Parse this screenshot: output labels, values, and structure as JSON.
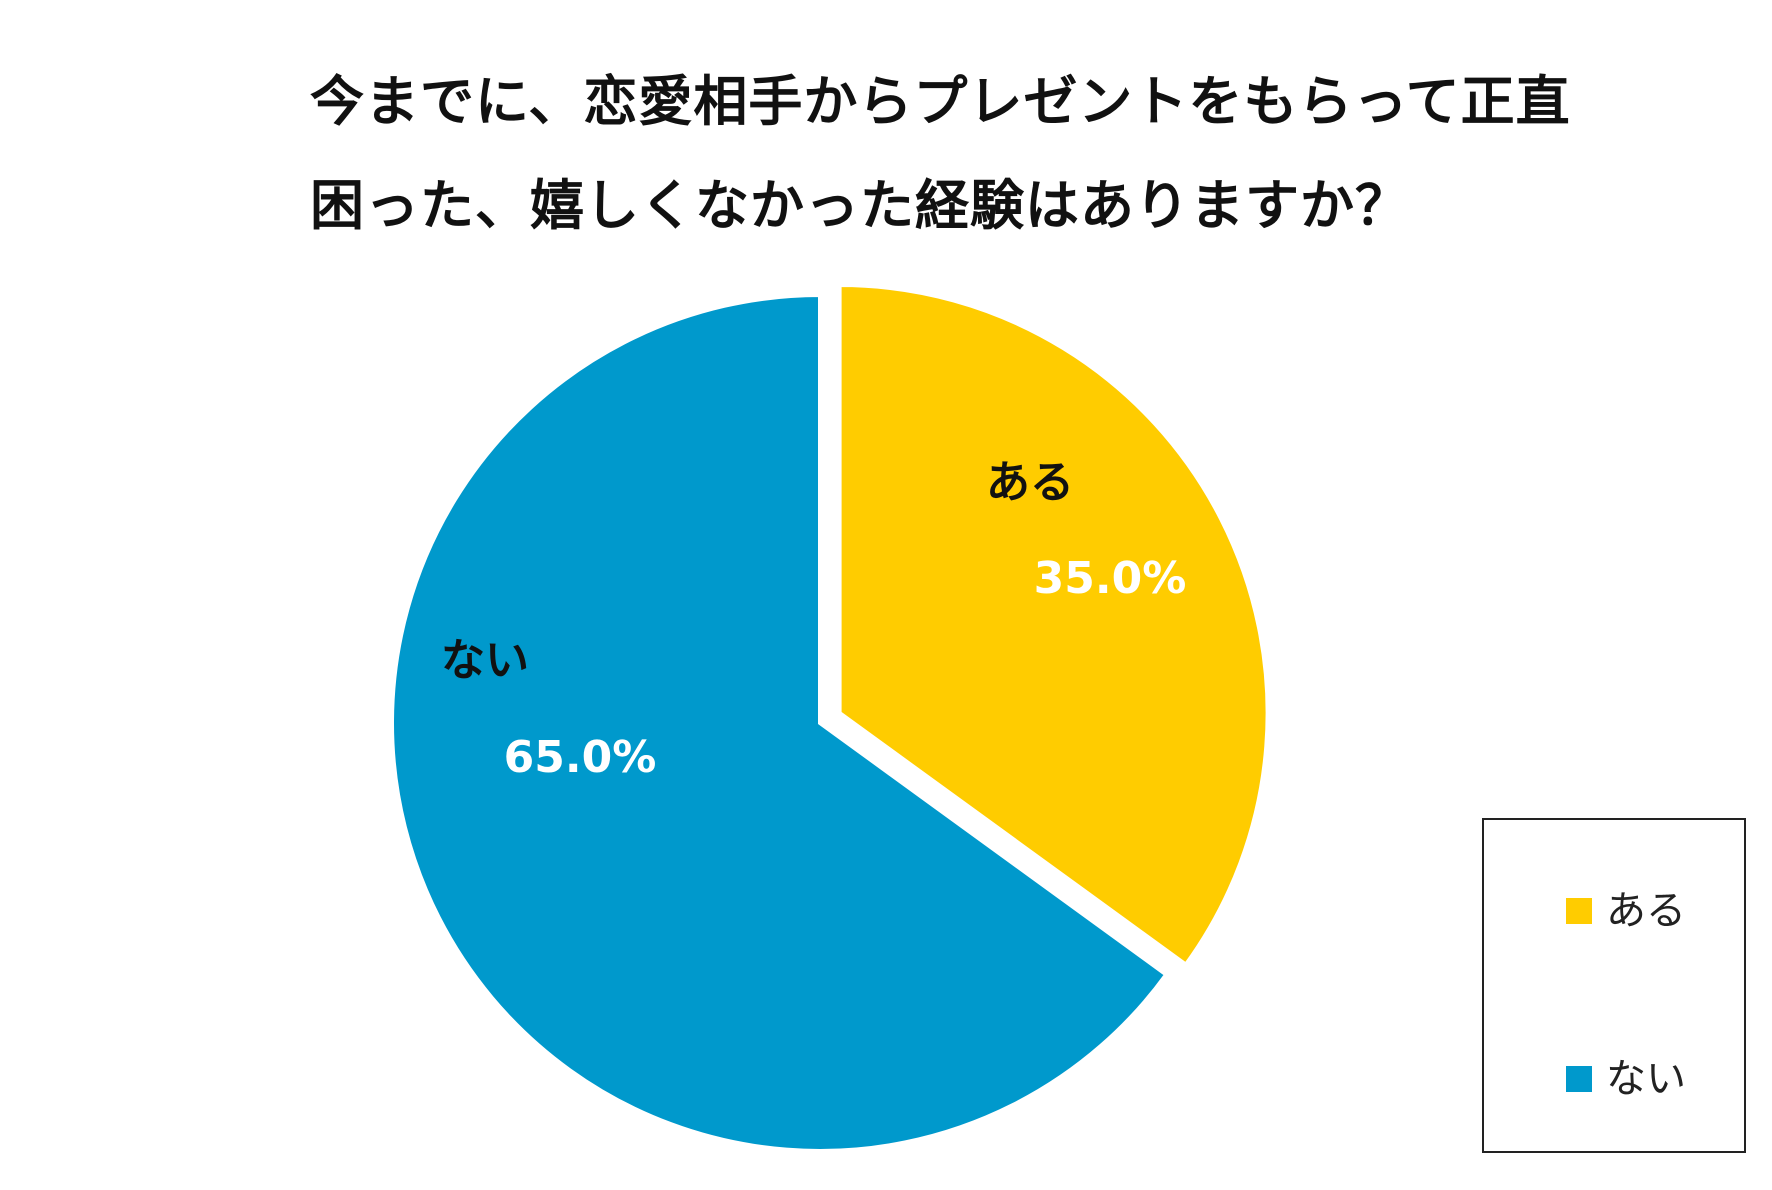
{
  "title": {
    "line1": "今までに、恋愛相手からプレゼントをもらって正直",
    "line2": "困った、嬉しくなかった経験はありますか？"
  },
  "chart_data": {
    "type": "pie",
    "title": "今までに、恋愛相手からプレゼントをもらって正直困った、嬉しくなかった経験はありますか？",
    "slices": [
      {
        "label": "ある",
        "value": 35.0,
        "value_label": "35.0%",
        "color": "#FFCC00",
        "exploded": true
      },
      {
        "label": "ない",
        "value": 65.0,
        "value_label": "65.0%",
        "color": "#0099CC",
        "exploded": false
      }
    ],
    "start": "12 o'clock, clockwise",
    "legend_position": "bottom-right"
  },
  "legend": {
    "items": [
      {
        "label": "ある",
        "color": "#FFCC00"
      },
      {
        "label": "ない",
        "color": "#0099CC"
      }
    ]
  },
  "colors": {
    "label_text": "#111111",
    "value_text": "#FFFFFF"
  }
}
